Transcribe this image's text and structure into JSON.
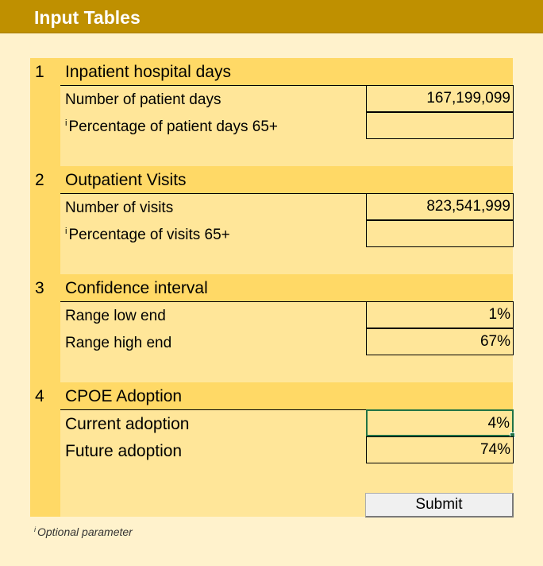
{
  "title": "Input Tables",
  "sections": [
    {
      "num": "1",
      "title": "Inpatient hospital days",
      "rows": [
        {
          "label": "Number of patient days",
          "marker": "",
          "value": "167,199,099"
        },
        {
          "label": "Percentage of patient days 65+",
          "marker": "i",
          "value": ""
        }
      ]
    },
    {
      "num": "2",
      "title": "Outpatient Visits",
      "rows": [
        {
          "label": "Number of visits",
          "marker": "",
          "value": "823,541,999"
        },
        {
          "label": "Percentage of visits 65+",
          "marker": "i",
          "value": ""
        }
      ]
    },
    {
      "num": "3",
      "title": "Confidence interval",
      "rows": [
        {
          "label": "Range low end",
          "marker": "",
          "value": "1%"
        },
        {
          "label": "Range high end",
          "marker": "",
          "value": "67%"
        }
      ]
    },
    {
      "num": "4",
      "title": "CPOE Adoption",
      "rows": [
        {
          "label": "Current adoption",
          "marker": "",
          "value": "4%"
        },
        {
          "label": "Future adoption",
          "marker": "",
          "value": "74%"
        }
      ]
    }
  ],
  "submit_label": "Submit",
  "footnote": {
    "marker": "i",
    "text": "Optional parameter"
  }
}
